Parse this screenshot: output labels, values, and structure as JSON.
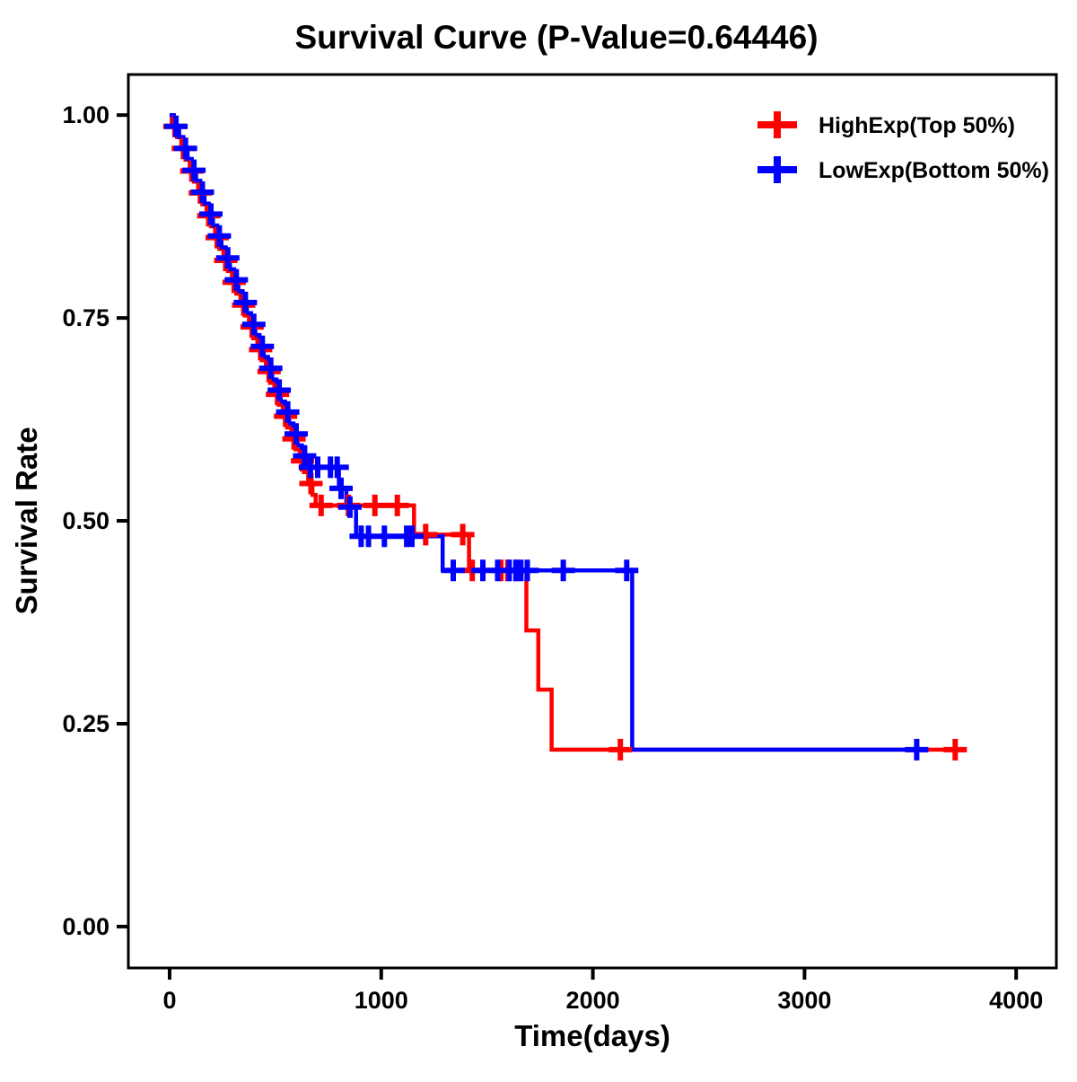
{
  "chart_data": {
    "type": "line",
    "subtype": "kaplan-meier-step",
    "title": "Survival Curve (P-Value=0.64446)",
    "p_value": "0.64446",
    "xlabel": "Time(days)",
    "ylabel": "Survival Rate",
    "xlim": [
      -195,
      4190
    ],
    "ylim": [
      -0.051,
      1.05
    ],
    "grid": "off",
    "xticks": {
      "values": [
        0,
        1000,
        2000,
        3000,
        4000
      ],
      "labels": [
        "0",
        "1000",
        "2000",
        "3000",
        "4000"
      ]
    },
    "yticks": {
      "values": [
        1.0,
        0.75,
        0.5,
        0.25,
        0.0
      ],
      "labels": [
        "1.00",
        "0.75",
        "0.50",
        "0.25",
        "0.00"
      ]
    },
    "legend": {
      "position": "top-right"
    },
    "series": [
      {
        "name": "HighExp(Top 50%)",
        "color": "#ff0000",
        "end": 3725,
        "steps": [
          [
            0,
            1.0
          ],
          [
            10,
            0.986
          ],
          [
            35,
            0.973
          ],
          [
            55,
            0.959
          ],
          [
            75,
            0.945
          ],
          [
            95,
            0.931
          ],
          [
            115,
            0.918
          ],
          [
            135,
            0.904
          ],
          [
            155,
            0.89
          ],
          [
            175,
            0.876
          ],
          [
            195,
            0.863
          ],
          [
            215,
            0.849
          ],
          [
            235,
            0.835
          ],
          [
            255,
            0.821
          ],
          [
            275,
            0.808
          ],
          [
            295,
            0.794
          ],
          [
            315,
            0.78
          ],
          [
            335,
            0.766
          ],
          [
            355,
            0.753
          ],
          [
            375,
            0.739
          ],
          [
            395,
            0.725
          ],
          [
            415,
            0.711
          ],
          [
            435,
            0.698
          ],
          [
            455,
            0.684
          ],
          [
            475,
            0.67
          ],
          [
            495,
            0.656
          ],
          [
            515,
            0.643
          ],
          [
            535,
            0.629
          ],
          [
            555,
            0.615
          ],
          [
            575,
            0.601
          ],
          [
            595,
            0.588
          ],
          [
            615,
            0.574
          ],
          [
            635,
            0.56
          ],
          [
            655,
            0.546
          ],
          [
            675,
            0.532
          ],
          [
            690,
            0.519
          ],
          [
            1155,
            0.483
          ],
          [
            1415,
            0.439
          ],
          [
            1686,
            0.365
          ],
          [
            1742,
            0.292
          ],
          [
            1805,
            0.218
          ]
        ],
        "censors": [
          [
            25,
            0.986
          ],
          [
            65,
            0.959
          ],
          [
            105,
            0.931
          ],
          [
            145,
            0.904
          ],
          [
            185,
            0.876
          ],
          [
            225,
            0.849
          ],
          [
            265,
            0.821
          ],
          [
            305,
            0.794
          ],
          [
            350,
            0.766
          ],
          [
            390,
            0.739
          ],
          [
            430,
            0.711
          ],
          [
            470,
            0.684
          ],
          [
            510,
            0.656
          ],
          [
            548,
            0.629
          ],
          [
            588,
            0.601
          ],
          [
            628,
            0.574
          ],
          [
            668,
            0.546
          ],
          [
            716,
            0.519
          ],
          [
            845,
            0.519
          ],
          [
            970,
            0.519
          ],
          [
            1076,
            0.519
          ],
          [
            1210,
            0.483
          ],
          [
            1385,
            0.483
          ],
          [
            1430,
            0.439
          ],
          [
            1565,
            0.439
          ],
          [
            1598,
            0.439
          ],
          [
            1640,
            0.439
          ],
          [
            2130,
            0.218
          ],
          [
            3712,
            0.218
          ]
        ]
      },
      {
        "name": "LowExp(Bottom 50%)",
        "color": "#0000ff",
        "end": 3535,
        "steps": [
          [
            0,
            1.0
          ],
          [
            20,
            0.986
          ],
          [
            45,
            0.973
          ],
          [
            65,
            0.959
          ],
          [
            85,
            0.946
          ],
          [
            105,
            0.932
          ],
          [
            125,
            0.919
          ],
          [
            145,
            0.905
          ],
          [
            165,
            0.891
          ],
          [
            185,
            0.878
          ],
          [
            205,
            0.864
          ],
          [
            225,
            0.851
          ],
          [
            245,
            0.837
          ],
          [
            265,
            0.824
          ],
          [
            285,
            0.81
          ],
          [
            305,
            0.797
          ],
          [
            325,
            0.783
          ],
          [
            345,
            0.769
          ],
          [
            365,
            0.756
          ],
          [
            385,
            0.742
          ],
          [
            405,
            0.729
          ],
          [
            425,
            0.715
          ],
          [
            445,
            0.702
          ],
          [
            465,
            0.688
          ],
          [
            485,
            0.674
          ],
          [
            505,
            0.661
          ],
          [
            525,
            0.647
          ],
          [
            545,
            0.634
          ],
          [
            565,
            0.62
          ],
          [
            585,
            0.607
          ],
          [
            605,
            0.593
          ],
          [
            625,
            0.58
          ],
          [
            655,
            0.566
          ],
          [
            800,
            0.54
          ],
          [
            835,
            0.517
          ],
          [
            881,
            0.481
          ],
          [
            1290,
            0.439
          ],
          [
            2186,
            0.218
          ]
        ],
        "censors": [
          [
            30,
            0.986
          ],
          [
            75,
            0.959
          ],
          [
            115,
            0.932
          ],
          [
            155,
            0.905
          ],
          [
            195,
            0.878
          ],
          [
            235,
            0.851
          ],
          [
            275,
            0.824
          ],
          [
            315,
            0.797
          ],
          [
            358,
            0.769
          ],
          [
            398,
            0.742
          ],
          [
            438,
            0.715
          ],
          [
            478,
            0.688
          ],
          [
            518,
            0.661
          ],
          [
            558,
            0.634
          ],
          [
            598,
            0.607
          ],
          [
            638,
            0.58
          ],
          [
            665,
            0.566
          ],
          [
            700,
            0.566
          ],
          [
            760,
            0.566
          ],
          [
            792,
            0.566
          ],
          [
            810,
            0.54
          ],
          [
            852,
            0.517
          ],
          [
            905,
            0.481
          ],
          [
            940,
            0.481
          ],
          [
            1015,
            0.481
          ],
          [
            1120,
            0.481
          ],
          [
            1145,
            0.481
          ],
          [
            1340,
            0.439
          ],
          [
            1480,
            0.439
          ],
          [
            1550,
            0.439
          ],
          [
            1605,
            0.439
          ],
          [
            1636,
            0.439
          ],
          [
            1660,
            0.439
          ],
          [
            1690,
            0.439
          ],
          [
            1860,
            0.439
          ],
          [
            2160,
            0.439
          ],
          [
            3530,
            0.218
          ]
        ]
      }
    ]
  }
}
